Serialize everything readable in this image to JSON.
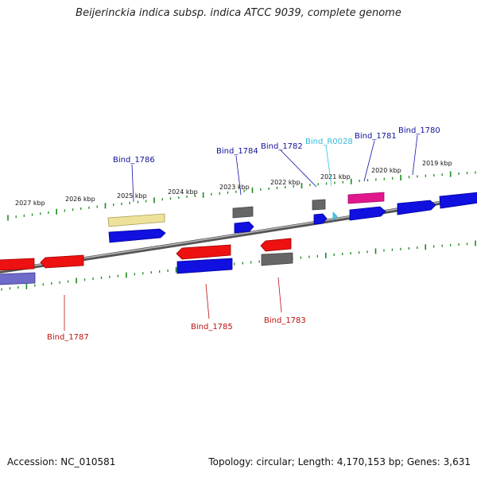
{
  "title": "Beijerinckia indica subsp. indica ATCC 9039, complete genome",
  "footer": {
    "accession": "Accession: NC_010581",
    "summary": "Topology: circular; Length: 4,170,153 bp; Genes: 3,631"
  },
  "kbp_labels": [
    "2027 kbp",
    "2026 kbp",
    "2025 kbp",
    "2024 kbp",
    "2023 kbp",
    "2022 kbp",
    "2021 kbp",
    "2020 kbp",
    "2019 kbp"
  ],
  "gene_labels": {
    "top": [
      "Bind_1786",
      "Bind_1784",
      "Bind_1782",
      "Bind_R0028",
      "Bind_1781",
      "Bind_1780"
    ],
    "bottom": [
      "Bind_1787",
      "Bind_1785",
      "Bind_1783"
    ]
  },
  "colors": {
    "cds_forward": "#1010e0",
    "cds_reverse": "#ee1111",
    "tan": "#eee29a",
    "gray": "#666666",
    "magenta": "#e0168c",
    "cyan": "#44ccee",
    "lavender": "#6f6bc8",
    "tick": "#1a8a1a",
    "label_forward": "#111199",
    "label_reverse": "#bb1111",
    "label_rna": "#33bbdd"
  }
}
